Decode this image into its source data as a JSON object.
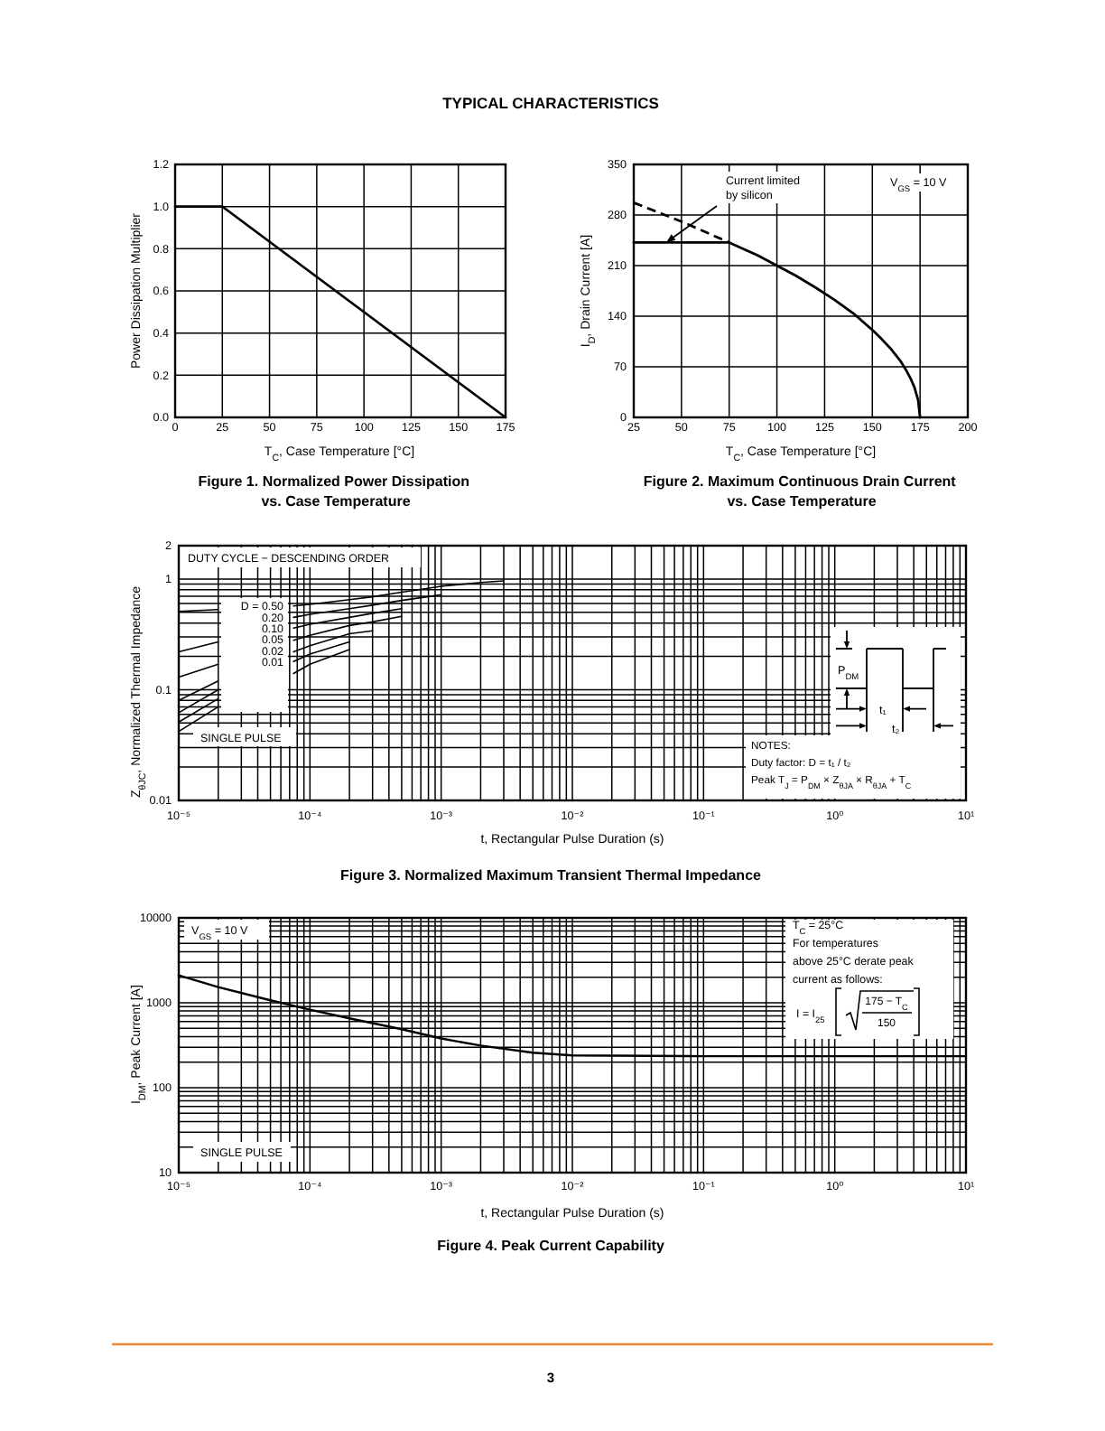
{
  "chart_data": [
    {
      "type": "line",
      "title": "Figure 1. Normalized Power Dissipation\nvs. Case Temperature",
      "xlabel": "T$_{C}$, Case Temperature [°C]",
      "ylabel": "Power Dissipation Multiplier",
      "x": [
        0,
        25,
        175
      ],
      "series": [
        {
          "color": "#000000",
          "values": [
            1,
            1,
            0
          ]
        }
      ],
      "xlim": [
        0,
        175
      ],
      "ylim": [
        0,
        1.2
      ],
      "xticks": [
        0,
        25,
        50,
        75,
        100,
        125,
        150,
        175
      ],
      "yticks": [
        {
          "value": 0,
          "label": "0.0"
        },
        0.2,
        0.4,
        0.6,
        0.8,
        {
          "value": 1,
          "label": "1.0"
        },
        1.2
      ],
      "grid": true,
      "annotations": [
        "TYPICAL CHARACTERISTICS"
      ]
    },
    {
      "type": "line",
      "title": "Figure 2. Maximum Continuous Drain Current\nvs. Case Temperature",
      "xlabel": "T$_{C}$, Case Temperature [°C]",
      "ylabel": "I$_{D}$, Drain Current [A]",
      "series": [
        {
          "color": "#000000",
          "x": [
            25,
            75,
            80,
            90,
            100,
            110,
            120,
            130,
            140,
            150,
            155,
            160,
            165,
            168,
            170,
            172,
            174,
            175
          ],
          "values": [
            242,
            242,
            236,
            224,
            210,
            196,
            180,
            163,
            144,
            121,
            108,
            94,
            77,
            64,
            54,
            42,
            24,
            0
          ]
        },
        {
          "color": "#000000",
          "line_style": "dashed",
          "x": [
            25,
            50,
            75
          ],
          "values": [
            297,
            271,
            242
          ]
        }
      ],
      "xlim": [
        25,
        200
      ],
      "ylim": [
        0,
        350
      ],
      "xticks": [
        25,
        50,
        75,
        100,
        125,
        150,
        175,
        200
      ],
      "yticks": [
        0,
        70,
        140,
        210,
        280,
        350
      ],
      "grid": true,
      "annotations": [
        {
          "text": "Current limited\nby silicon",
          "x": 42,
          "y": 242
        },
        "V$_{GS}$ = 10 V"
      ]
    },
    {
      "type": "line",
      "title": "Figure 3. Normalized Maximum Transient Thermal Impedance",
      "xlabel": "t, Rectangular Pulse Duration (s)",
      "ylabel": "Z$_{θJC}$, Normalized Thermal Impedance",
      "log": "xy",
      "legend": "left",
      "legend_title": "DUTY CYCLE − DESCENDING ORDER",
      "x": [
        1e-05,
        2e-05,
        5e-05,
        7.5e-05,
        0.0001,
        0.0002,
        0.0003,
        0.0005,
        0.001,
        0.002,
        0.003
      ],
      "series": [
        {
          "name": "D = 0.50",
          "color": "#000000",
          "values": [
            0.51,
            0.53,
            null,
            0.57,
            0.59,
            0.65,
            0.69,
            0.76,
            0.86,
            0.93,
            0.96
          ]
        },
        {
          "name": "0.20",
          "color": "#000000",
          "values": [
            0.22,
            0.27,
            null,
            0.45,
            0.48,
            0.54,
            0.58,
            0.64,
            0.72,
            null,
            null
          ]
        },
        {
          "name": "0.10",
          "color": "#000000",
          "values": [
            0.13,
            0.17,
            null,
            0.36,
            0.39,
            0.45,
            0.49,
            0.54,
            null,
            null,
            null
          ]
        },
        {
          "name": "0.05",
          "color": "#000000",
          "values": [
            0.08,
            0.12,
            null,
            0.28,
            0.31,
            0.38,
            0.41,
            0.46,
            null,
            null,
            null
          ]
        },
        {
          "name": "0.02",
          "color": "#000000",
          "values": [
            0.062,
            0.1,
            null,
            0.22,
            0.25,
            0.32,
            0.34,
            null,
            null,
            null,
            null
          ]
        },
        {
          "name": "0.01",
          "color": "#000000",
          "values": [
            0.051,
            0.083,
            null,
            0.18,
            0.21,
            0.27,
            null,
            null,
            null,
            null,
            null
          ]
        },
        {
          "name": "SINGLE PULSE",
          "color": "#000000",
          "values": [
            0.042,
            0.07,
            null,
            0.14,
            0.17,
            0.23,
            null,
            null,
            null,
            null,
            null
          ]
        }
      ],
      "xlim": [
        1e-05,
        10
      ],
      "ylim": [
        0.01,
        2
      ],
      "xticks": [
        {
          "value": 1e-05,
          "label": "10⁻⁵"
        },
        {
          "value": 2e-05,
          "label": null
        },
        {
          "value": 3e-05,
          "label": null
        },
        {
          "value": 4e-05,
          "label": null
        },
        {
          "value": 5e-05,
          "label": null
        },
        {
          "value": 6e-05,
          "label": null
        },
        {
          "value": 7e-05,
          "label": null
        },
        {
          "value": 8e-05,
          "label": null
        },
        {
          "value": 9e-05,
          "label": null
        },
        {
          "value": 0.0001,
          "label": "10⁻⁴"
        },
        {
          "value": 0.0002,
          "label": null
        },
        {
          "value": 0.0003,
          "label": null
        },
        {
          "value": 0.0004,
          "label": null
        },
        {
          "value": 0.0005,
          "label": null
        },
        {
          "value": 0.0006,
          "label": null
        },
        {
          "value": 0.0007,
          "label": null
        },
        {
          "value": 0.0008,
          "label": null
        },
        {
          "value": 0.0009,
          "label": null
        },
        {
          "value": 0.001,
          "label": "10⁻³"
        },
        {
          "value": 0.002,
          "label": null
        },
        {
          "value": 0.003,
          "label": null
        },
        {
          "value": 0.004,
          "label": null
        },
        {
          "value": 0.005,
          "label": null
        },
        {
          "value": 0.006,
          "label": null
        },
        {
          "value": 0.007,
          "label": null
        },
        {
          "value": 0.008,
          "label": null
        },
        {
          "value": 0.009,
          "label": null
        },
        {
          "value": 0.01,
          "label": "10⁻²"
        },
        {
          "value": 0.02,
          "label": null
        },
        {
          "value": 0.03,
          "label": null
        },
        {
          "value": 0.04,
          "label": null
        },
        {
          "value": 0.05,
          "label": null
        },
        {
          "value": 0.06,
          "label": null
        },
        {
          "value": 0.07,
          "label": null
        },
        {
          "value": 0.08,
          "label": null
        },
        {
          "value": 0.09,
          "label": null
        },
        {
          "value": 0.1,
          "label": "10⁻¹"
        },
        {
          "value": 0.2,
          "label": null
        },
        {
          "value": 0.3,
          "label": null
        },
        {
          "value": 0.4,
          "label": null
        },
        {
          "value": 0.5,
          "label": null
        },
        {
          "value": 0.6,
          "label": null
        },
        {
          "value": 0.7,
          "label": null
        },
        {
          "value": 0.8,
          "label": null
        },
        {
          "value": 0.9,
          "label": null
        },
        {
          "value": 1,
          "label": "10⁰"
        },
        {
          "value": 2,
          "label": null
        },
        {
          "value": 3,
          "label": null
        },
        {
          "value": 4,
          "label": null
        },
        {
          "value": 5,
          "label": null
        },
        {
          "value": 6,
          "label": null
        },
        {
          "value": 7,
          "label": null
        },
        {
          "value": 8,
          "label": null
        },
        {
          "value": 9,
          "label": null
        },
        {
          "value": 10,
          "label": "10¹"
        }
      ],
      "yticks": [
        0.01,
        {
          "value": 0.02,
          "label": null
        },
        {
          "value": 0.03,
          "label": null
        },
        {
          "value": 0.04,
          "label": null
        },
        {
          "value": 0.05,
          "label": null
        },
        {
          "value": 0.06,
          "label": null
        },
        {
          "value": 0.07,
          "label": null
        },
        {
          "value": 0.08,
          "label": null
        },
        {
          "value": 0.09,
          "label": null
        },
        0.1,
        {
          "value": 0.2,
          "label": null
        },
        {
          "value": 0.3,
          "label": null
        },
        {
          "value": 0.4,
          "label": null
        },
        {
          "value": 0.5,
          "label": null
        },
        {
          "value": 0.6,
          "label": null
        },
        {
          "value": 0.7,
          "label": null
        },
        {
          "value": 0.8,
          "label": null
        },
        {
          "value": 0.9,
          "label": null
        },
        1,
        2
      ],
      "grid": true,
      "annotations": [
        "P$_{DM}$",
        "t₁",
        "t₂",
        "NOTES:\nDuty factor: D = t₁ / t₂\nPeak T$_{J}$ = P$_{DM}$ × Z$_{θJA}$ × R$_{θJA}$ + T$_{C}$"
      ]
    },
    {
      "type": "line",
      "title": "Figure 4. Peak Current Capability",
      "xlabel": "t, Rectangular Pulse Duration (s)",
      "ylabel": "I$_{DM}$, Peak Current [A]",
      "log": "xy",
      "x": [
        1e-05,
        2e-05,
        5e-05,
        0.0001,
        0.0002,
        0.0005,
        0.001,
        0.002,
        0.005,
        0.01,
        0.1,
        1,
        10
      ],
      "series": [
        {
          "color": "#000000",
          "values": [
            2100,
            1530,
            1070,
            830,
            655,
            488,
            380,
            313,
            258,
            240,
            235,
            235,
            235
          ]
        }
      ],
      "xlim": [
        1e-05,
        10
      ],
      "ylim": [
        10,
        10000
      ],
      "xticks": [
        {
          "value": 1e-05,
          "label": "10⁻⁵"
        },
        {
          "value": 2e-05,
          "label": null
        },
        {
          "value": 3e-05,
          "label": null
        },
        {
          "value": 4e-05,
          "label": null
        },
        {
          "value": 5e-05,
          "label": null
        },
        {
          "value": 6e-05,
          "label": null
        },
        {
          "value": 7e-05,
          "label": null
        },
        {
          "value": 8e-05,
          "label": null
        },
        {
          "value": 9e-05,
          "label": null
        },
        {
          "value": 0.0001,
          "label": "10⁻⁴"
        },
        {
          "value": 0.0002,
          "label": null
        },
        {
          "value": 0.0003,
          "label": null
        },
        {
          "value": 0.0004,
          "label": null
        },
        {
          "value": 0.0005,
          "label": null
        },
        {
          "value": 0.0006,
          "label": null
        },
        {
          "value": 0.0007,
          "label": null
        },
        {
          "value": 0.0008,
          "label": null
        },
        {
          "value": 0.0009,
          "label": null
        },
        {
          "value": 0.001,
          "label": "10⁻³"
        },
        {
          "value": 0.002,
          "label": null
        },
        {
          "value": 0.003,
          "label": null
        },
        {
          "value": 0.004,
          "label": null
        },
        {
          "value": 0.005,
          "label": null
        },
        {
          "value": 0.006,
          "label": null
        },
        {
          "value": 0.007,
          "label": null
        },
        {
          "value": 0.008,
          "label": null
        },
        {
          "value": 0.009,
          "label": null
        },
        {
          "value": 0.01,
          "label": "10⁻²"
        },
        {
          "value": 0.02,
          "label": null
        },
        {
          "value": 0.03,
          "label": null
        },
        {
          "value": 0.04,
          "label": null
        },
        {
          "value": 0.05,
          "label": null
        },
        {
          "value": 0.06,
          "label": null
        },
        {
          "value": 0.07,
          "label": null
        },
        {
          "value": 0.08,
          "label": null
        },
        {
          "value": 0.09,
          "label": null
        },
        {
          "value": 0.1,
          "label": "10⁻¹"
        },
        {
          "value": 0.2,
          "label": null
        },
        {
          "value": 0.3,
          "label": null
        },
        {
          "value": 0.4,
          "label": null
        },
        {
          "value": 0.5,
          "label": null
        },
        {
          "value": 0.6,
          "label": null
        },
        {
          "value": 0.7,
          "label": null
        },
        {
          "value": 0.8,
          "label": null
        },
        {
          "value": 0.9,
          "label": null
        },
        {
          "value": 1,
          "label": "10⁰"
        },
        {
          "value": 2,
          "label": null
        },
        {
          "value": 3,
          "label": null
        },
        {
          "value": 4,
          "label": null
        },
        {
          "value": 5,
          "label": null
        },
        {
          "value": 6,
          "label": null
        },
        {
          "value": 7,
          "label": null
        },
        {
          "value": 8,
          "label": null
        },
        {
          "value": 9,
          "label": null
        },
        {
          "value": 10,
          "label": "10¹"
        }
      ],
      "yticks": [
        10,
        {
          "value": 20,
          "label": null
        },
        {
          "value": 30,
          "label": null
        },
        {
          "value": 40,
          "label": null
        },
        {
          "value": 50,
          "label": null
        },
        {
          "value": 60,
          "label": null
        },
        {
          "value": 70,
          "label": null
        },
        {
          "value": 80,
          "label": null
        },
        {
          "value": 90,
          "label": null
        },
        100,
        {
          "value": 200,
          "label": null
        },
        {
          "value": 300,
          "label": null
        },
        {
          "value": 400,
          "label": null
        },
        {
          "value": 500,
          "label": null
        },
        {
          "value": 600,
          "label": null
        },
        {
          "value": 700,
          "label": null
        },
        {
          "value": 800,
          "label": null
        },
        {
          "value": 900,
          "label": null
        },
        1000,
        {
          "value": 2000,
          "label": null
        },
        {
          "value": 3000,
          "label": null
        },
        {
          "value": 4000,
          "label": null
        },
        {
          "value": 5000,
          "label": null
        },
        {
          "value": 6000,
          "label": null
        },
        {
          "value": 7000,
          "label": null
        },
        {
          "value": 8000,
          "label": null
        },
        {
          "value": 9000,
          "label": null
        },
        10000
      ],
      "grid": true,
      "annotations": [
        "V$_{GS}$ = 10 V",
        "T$_{C}$ = 25°C\nFor temperatures\nabove 25°C derate peak\ncurrent as follows:",
        "I = I$_{25}$",
        "175 − T$_{C}$",
        "150",
        "SINGLE PULSE",
        "3"
      ]
    }
  ]
}
